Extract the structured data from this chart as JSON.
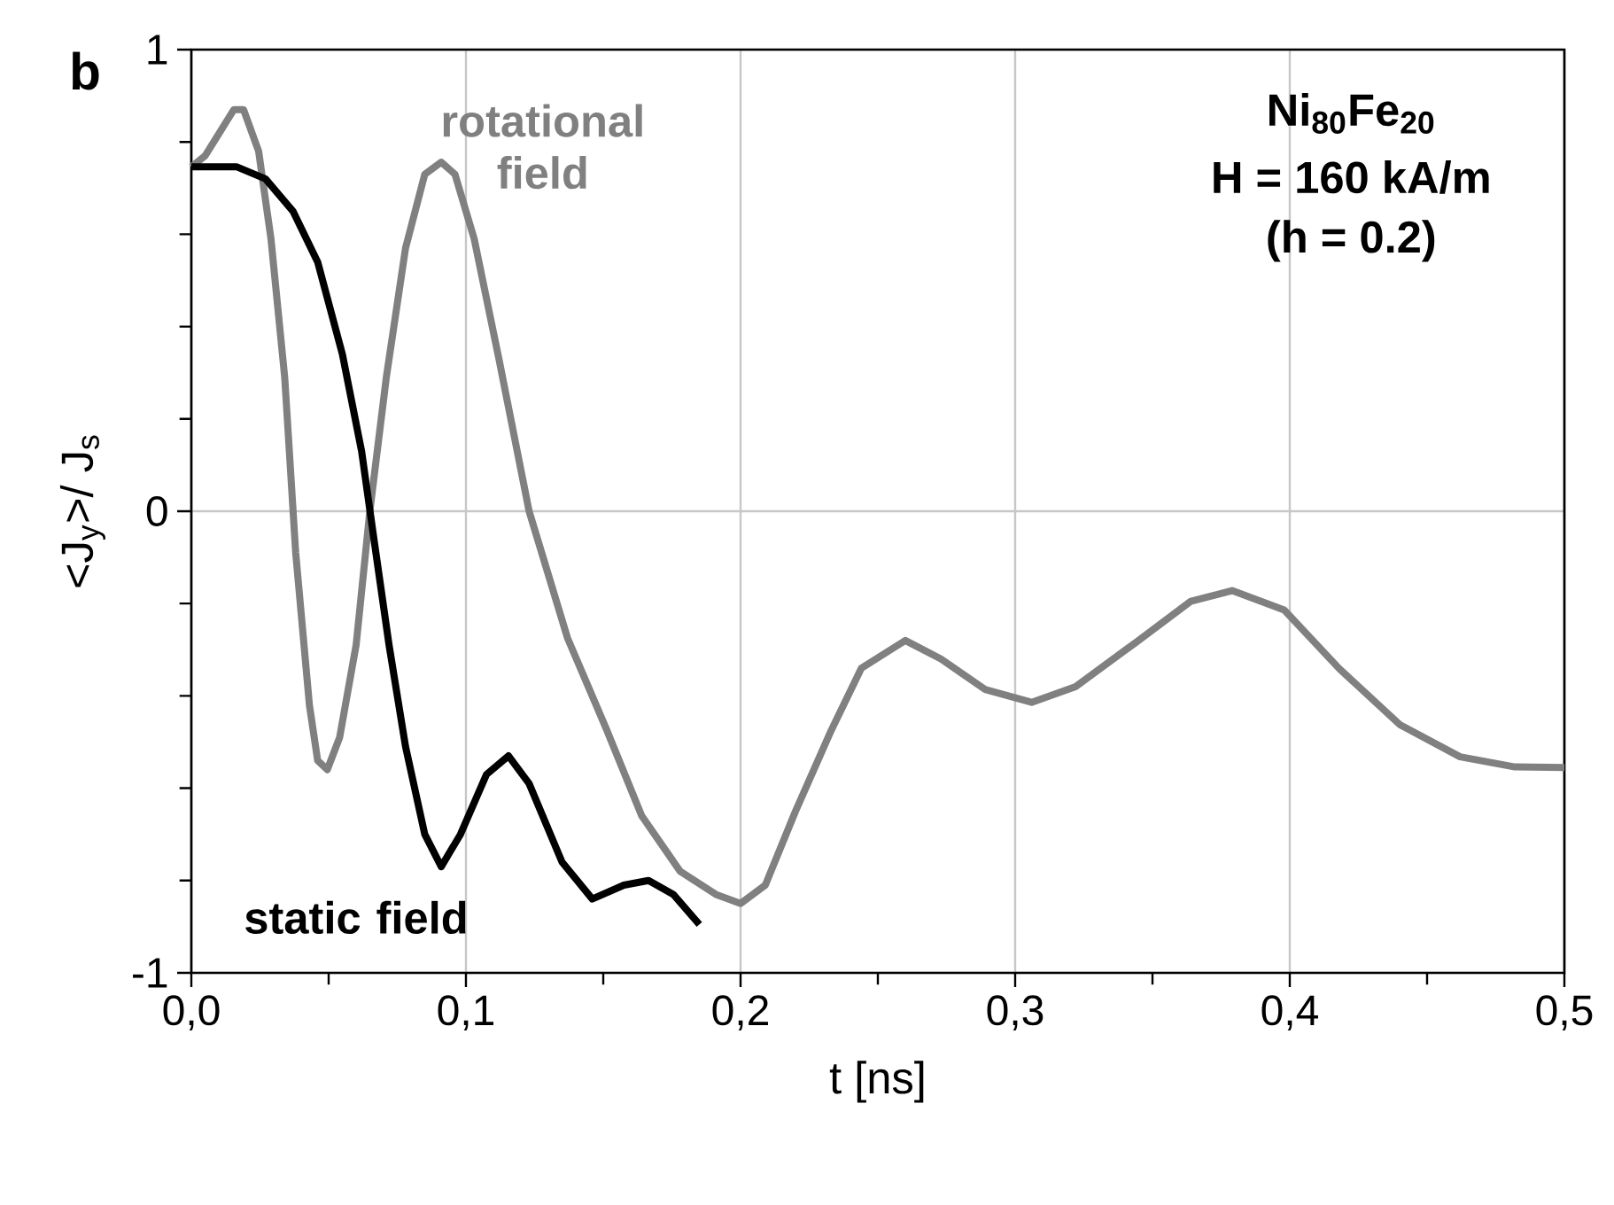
{
  "chart_data": {
    "type": "line",
    "xlabel": "t [ns]",
    "ylabel": "<J$_{y}$>/ J$_{s}$",
    "annotations": [
      "b",
      "Ni$_{80}$Fe$_{20}$",
      "H = 160 kA/m",
      "(h = 0.2)"
    ],
    "xlim": [
      0,
      0.5
    ],
    "ylim": [
      -1,
      1
    ],
    "xticks": [
      {
        "value": 0,
        "label": "0,0"
      },
      {
        "value": 0.1,
        "label": "0,1"
      },
      {
        "value": 0.2,
        "label": "0,2"
      },
      {
        "value": 0.3,
        "label": "0,3"
      },
      {
        "value": 0.4,
        "label": "0,4"
      },
      {
        "value": 0.5,
        "label": "0,5"
      }
    ],
    "yticks": [
      -1,
      0,
      1
    ],
    "grid": true,
    "legend": false,
    "marker": "none",
    "line_style": "solid",
    "series": [
      {
        "name": "rotational field",
        "color": "#808080",
        "x": [
          0,
          0.005,
          0.0155,
          0.019,
          0.0245,
          0.029,
          0.034,
          0.038,
          0.043,
          0.046,
          0.0495,
          0.054,
          0.06,
          0.065,
          0.071,
          0.078,
          0.085,
          0.091,
          0.096,
          0.103,
          0.112,
          0.123,
          0.137,
          0.151,
          0.164,
          0.178,
          0.191,
          0.2,
          0.209,
          0.22,
          0.233,
          0.244,
          0.26,
          0.273,
          0.289,
          0.306,
          0.322,
          0.344,
          0.364,
          0.379,
          0.398,
          0.418,
          0.44,
          0.462,
          0.482,
          0.5
        ],
        "values": [
          0.746,
          0.77,
          0.87,
          0.87,
          0.78,
          0.59,
          0.29,
          -0.09,
          -0.42,
          -0.54,
          -0.56,
          -0.49,
          -0.29,
          0.0,
          0.29,
          0.57,
          0.73,
          0.756,
          0.73,
          0.59,
          0.33,
          0.0,
          -0.275,
          -0.47,
          -0.66,
          -0.78,
          -0.83,
          -0.85,
          -0.81,
          -0.65,
          -0.475,
          -0.34,
          -0.28,
          -0.32,
          -0.386,
          -0.414,
          -0.38,
          -0.284,
          -0.195,
          -0.172,
          -0.214,
          -0.341,
          -0.462,
          -0.532,
          -0.554,
          -0.555
        ]
      },
      {
        "name": "static field",
        "color": "#000000",
        "x": [
          0,
          0.0166,
          0.027,
          0.037,
          0.046,
          0.055,
          0.062,
          0.0666,
          0.072,
          0.078,
          0.085,
          0.091,
          0.098,
          0.1075,
          0.1155,
          0.123,
          0.135,
          0.146,
          0.1575,
          0.1665,
          0.1755,
          0.185
        ],
        "values": [
          0.746,
          0.746,
          0.72,
          0.65,
          0.54,
          0.34,
          0.13,
          -0.065,
          -0.29,
          -0.51,
          -0.7,
          -0.77,
          -0.7,
          -0.57,
          -0.53,
          -0.59,
          -0.76,
          -0.84,
          -0.81,
          -0.8,
          -0.83,
          -0.895
        ]
      }
    ]
  }
}
